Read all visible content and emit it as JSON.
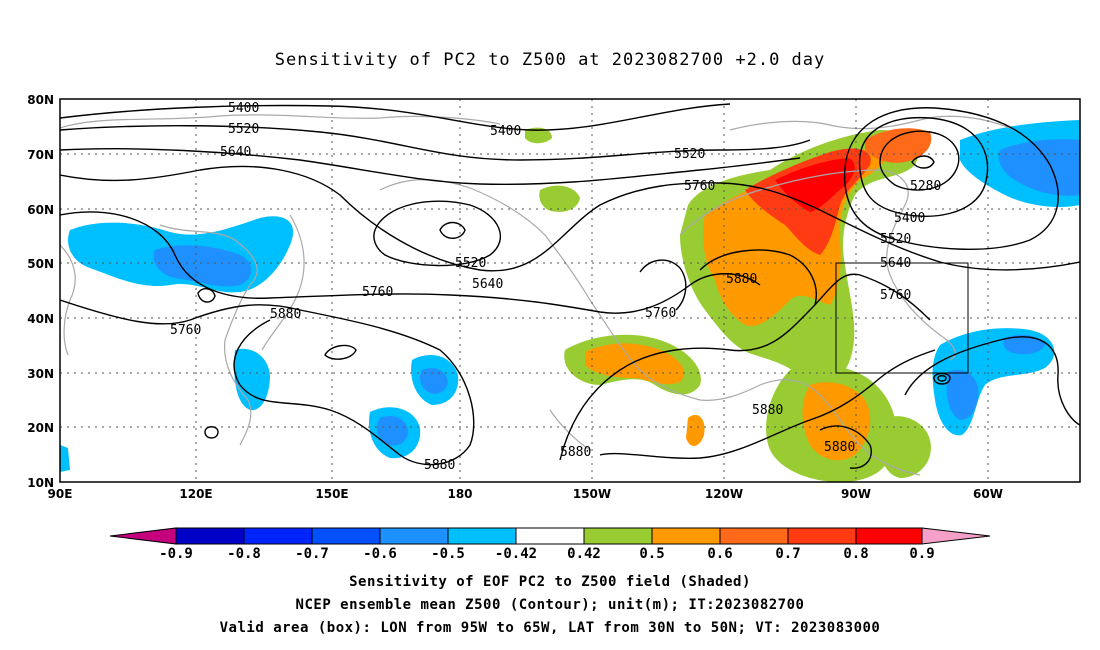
{
  "title": "Sensitivity of PC2 to Z500 at 2023082700 +2.0 day",
  "map": {
    "lon_ticks": [
      "90E",
      "120E",
      "150E",
      "180",
      "150W",
      "120W",
      "90W",
      "60W"
    ],
    "lat_ticks": [
      "80N",
      "70N",
      "60N",
      "50N",
      "40N",
      "30N",
      "20N",
      "10N"
    ],
    "contour_labels": [
      "5400",
      "5520",
      "5640",
      "5400",
      "5520",
      "5760",
      "5280",
      "5400",
      "5520",
      "5640",
      "5760",
      "5880",
      "5760",
      "5520",
      "5640",
      "5760",
      "5880",
      "5760",
      "5880",
      "5880",
      "5880",
      "5880"
    ],
    "colors": {
      "strong_pos": "#ff1a00",
      "pos_07": "#ff5a1e",
      "pos_06": "#ff8c00",
      "pos_05": "#99cc33",
      "neg_05": "#00bfff",
      "neg_06": "#1e90ff",
      "neg_07": "#0050ff",
      "coast": "#a9a9a9"
    }
  },
  "colorbar": {
    "labels": [
      "-0.9",
      "-0.8",
      "-0.7",
      "-0.6",
      "-0.5",
      "-0.42",
      "0.42",
      "0.5",
      "0.6",
      "0.7",
      "0.8",
      "0.9"
    ],
    "colors": [
      "#c4007d",
      "#0000c8",
      "#0024ff",
      "#0050ff",
      "#1e90ff",
      "#00bfff",
      "#ffffff",
      "#99cc33",
      "#ff9900",
      "#ff6a1a",
      "#ff3b14",
      "#ff0000",
      "#f4a0c8"
    ]
  },
  "footer": {
    "line1": "Sensitivity of EOF PC2 to Z500 field (Shaded)",
    "line2": "NCEP ensemble mean Z500 (Contour); unit(m); IT:2023082700",
    "line3": "Valid area (box): LON from 95W to 65W, LAT from 30N to 50N; VT: 2023083000"
  }
}
